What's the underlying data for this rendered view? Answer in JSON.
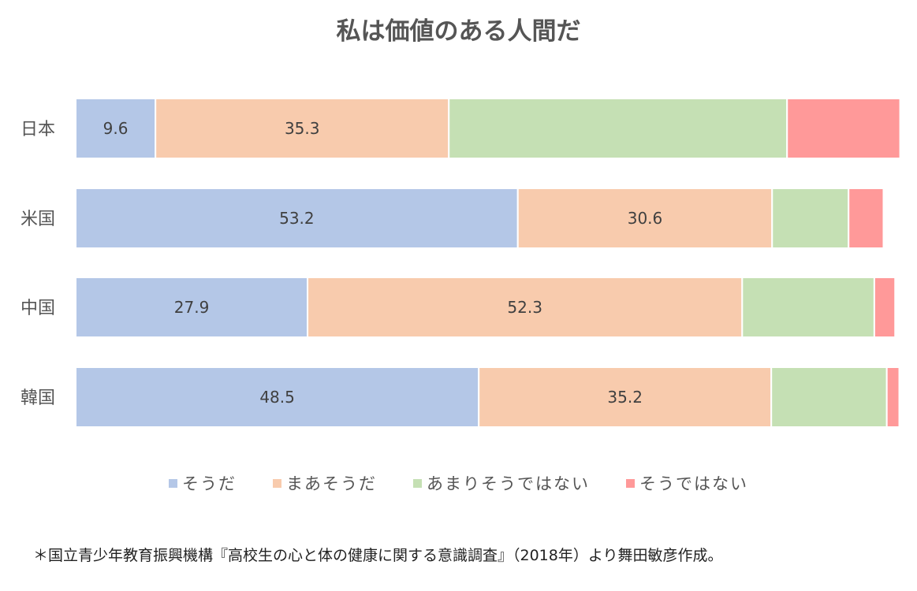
{
  "chart_data": {
    "type": "bar",
    "orientation": "horizontal",
    "stacked": "percent",
    "title": "私は価値のある人間だ",
    "categories": [
      "日本",
      "米国",
      "中国",
      "韓国"
    ],
    "series": [
      {
        "name": "そうだ",
        "color": "#b4c7e7",
        "values": [
          9.6,
          53.2,
          27.9,
          48.5
        ],
        "labels": [
          "9.6",
          "53.2",
          "27.9",
          "48.5"
        ]
      },
      {
        "name": "まあそうだ",
        "color": "#f8cbad",
        "values": [
          35.3,
          30.6,
          52.3,
          35.2
        ],
        "labels": [
          "35.3",
          "30.6",
          "52.3",
          "35.2"
        ]
      },
      {
        "name": "あまりそうではない",
        "color": "#c5e0b4",
        "values": [
          40.7,
          9.2,
          15.9,
          13.9
        ],
        "labels": [
          "",
          "",
          "",
          ""
        ]
      },
      {
        "name": "そうではない",
        "color": "#ff9999",
        "values": [
          13.6,
          4.2,
          2.5,
          1.5
        ],
        "labels": [
          "",
          "",
          "",
          ""
        ]
      }
    ],
    "xlim": [
      0,
      100
    ],
    "grid": false,
    "legend_position": "bottom"
  },
  "footnote": "＊国立青少年教育振興機構『高校生の心と体の健康に関する意識調査』（2018年）より舞田敏彦作成。"
}
